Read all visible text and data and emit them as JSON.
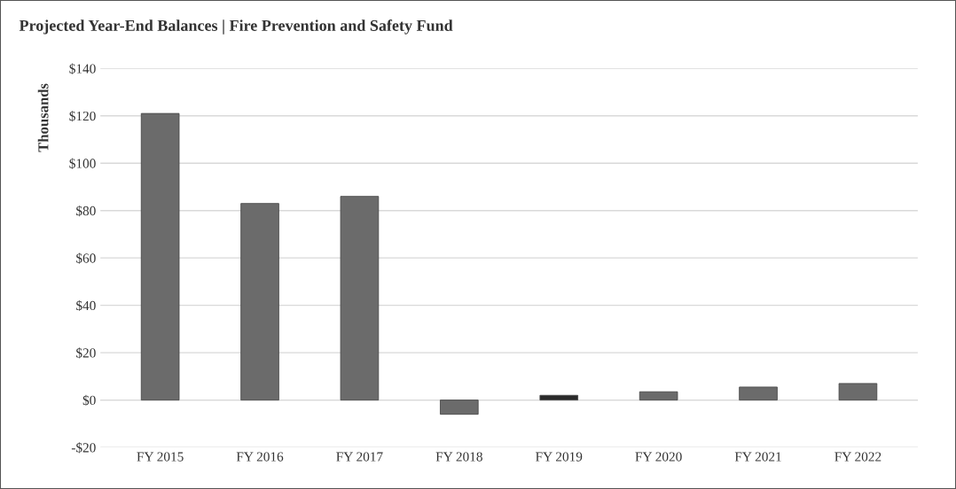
{
  "chart_data": {
    "type": "bar",
    "title": "Projected Year-End Balances | Fire Prevention and Safety Fund",
    "ylabel": "Thousands",
    "categories": [
      "FY 2015",
      "FY 2016",
      "FY 2017",
      "FY 2018",
      "FY 2019",
      "FY 2020",
      "FY 2021",
      "FY 2022"
    ],
    "values": [
      121,
      83,
      86,
      -6,
      2,
      3.5,
      5.5,
      7
    ],
    "colors": [
      "#6b6b6b",
      "#6b6b6b",
      "#6b6b6b",
      "#6b6b6b",
      "#2a2a2a",
      "#6b6b6b",
      "#6b6b6b",
      "#6b6b6b"
    ],
    "ylim": [
      -20,
      140
    ],
    "yticks": [
      {
        "value": -20,
        "label": "-$20"
      },
      {
        "value": 0,
        "label": "$0"
      },
      {
        "value": 20,
        "label": "$20"
      },
      {
        "value": 40,
        "label": "$40"
      },
      {
        "value": 60,
        "label": "$60"
      },
      {
        "value": 80,
        "label": "$80"
      },
      {
        "value": 100,
        "label": "$100"
      },
      {
        "value": 120,
        "label": "$120"
      },
      {
        "value": 140,
        "label": "$140"
      }
    ],
    "grid": "y"
  }
}
